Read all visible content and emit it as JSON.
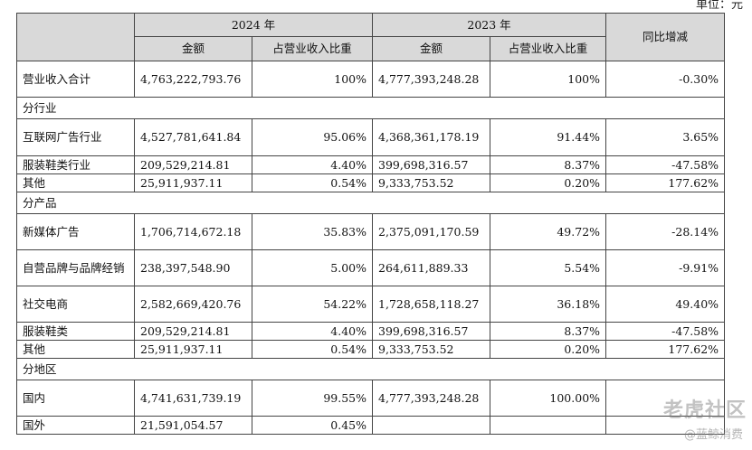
{
  "unit_label": "单位：元",
  "header": {
    "year_2024": "2024 年",
    "year_2023": "2023 年",
    "amount": "金额",
    "share": "占营业收入比重",
    "yoy": "同比增减"
  },
  "total": {
    "label": "营业收入合计",
    "amt_2024": "4,763,222,793.76",
    "share_2024": "100%",
    "amt_2023": "4,777,393,248.28",
    "share_2023": "100%",
    "yoy": "-0.30%"
  },
  "by_industry": {
    "section": "分行业",
    "rows": [
      {
        "label": "互联网广告行业",
        "amt_2024": "4,527,781,641.84",
        "share_2024": "95.06%",
        "amt_2023": "4,368,361,178.19",
        "share_2023": "91.44%",
        "yoy": "3.65%"
      },
      {
        "label": "服装鞋类行业",
        "amt_2024": "209,529,214.81",
        "share_2024": "4.40%",
        "amt_2023": "399,698,316.57",
        "share_2023": "8.37%",
        "yoy": "-47.58%"
      },
      {
        "label": "其他",
        "amt_2024": "25,911,937.11",
        "share_2024": "0.54%",
        "amt_2023": "9,333,753.52",
        "share_2023": "0.20%",
        "yoy": "177.62%"
      }
    ]
  },
  "by_product": {
    "section": "分产品",
    "rows": [
      {
        "label": "新媒体广告",
        "amt_2024": "1,706,714,672.18",
        "share_2024": "35.83%",
        "amt_2023": "2,375,091,170.59",
        "share_2023": "49.72%",
        "yoy": "-28.14%"
      },
      {
        "label": "自营品牌与品牌经销",
        "amt_2024": "238,397,548.90",
        "share_2024": "5.00%",
        "amt_2023": "264,611,889.33",
        "share_2023": "5.54%",
        "yoy": "-9.91%"
      },
      {
        "label": "社交电商",
        "amt_2024": "2,582,669,420.76",
        "share_2024": "54.22%",
        "amt_2023": "1,728,658,118.27",
        "share_2023": "36.18%",
        "yoy": "49.40%"
      },
      {
        "label": "服装鞋类",
        "amt_2024": "209,529,214.81",
        "share_2024": "4.40%",
        "amt_2023": "399,698,316.57",
        "share_2023": "8.37%",
        "yoy": "-47.58%"
      },
      {
        "label": "其他",
        "amt_2024": "25,911,937.11",
        "share_2024": "0.54%",
        "amt_2023": "9,333,753.52",
        "share_2023": "0.20%",
        "yoy": "177.62%"
      }
    ]
  },
  "by_region": {
    "section": "分地区",
    "rows": [
      {
        "label": "国内",
        "amt_2024": "4,741,631,739.19",
        "share_2024": "99.55%",
        "amt_2023": "4,777,393,248.28",
        "share_2023": "100.00%",
        "yoy": ""
      },
      {
        "label": "国外",
        "amt_2024": "21,591,054.57",
        "share_2024": "0.45%",
        "amt_2023": "",
        "share_2023": "",
        "yoy": ""
      }
    ]
  },
  "watermark": {
    "main": "老虎社区",
    "sub": "@蓝鲸消费"
  }
}
